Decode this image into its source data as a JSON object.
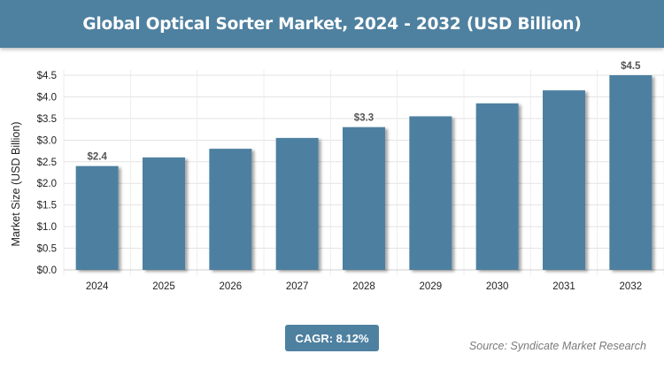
{
  "header": {
    "title": "Global Optical Sorter Market, 2024 - 2032 (USD Billion)"
  },
  "chart_data": {
    "type": "bar",
    "title": "Global Optical Sorter Market, 2024 - 2032 (USD Billion)",
    "xlabel": "",
    "ylabel": "Market Size (USD Billion)",
    "categories": [
      "2024",
      "2025",
      "2026",
      "2027",
      "2028",
      "2029",
      "2030",
      "2031",
      "2032"
    ],
    "values": [
      2.4,
      2.6,
      2.8,
      3.05,
      3.3,
      3.55,
      3.85,
      4.15,
      4.5
    ],
    "data_labels": [
      "$2.4",
      "",
      "",
      "",
      "$3.3",
      "",
      "",
      "",
      "$4.5"
    ],
    "ylim": [
      0,
      4.5
    ],
    "yticks": [
      0,
      0.5,
      1,
      1.5,
      2,
      2.5,
      3,
      3.5,
      4,
      4.5
    ],
    "ytick_labels": [
      "$0.0",
      "$0.5",
      "$1.0",
      "$1.5",
      "$2.0",
      "$2.5",
      "$3.0",
      "$3.5",
      "$4.0",
      "$4.5"
    ],
    "grid": true,
    "bar_color": "#4e80a0"
  },
  "footer": {
    "cagr": "CAGR: 8.12%",
    "source": "Source: Syndicate Market Research"
  }
}
